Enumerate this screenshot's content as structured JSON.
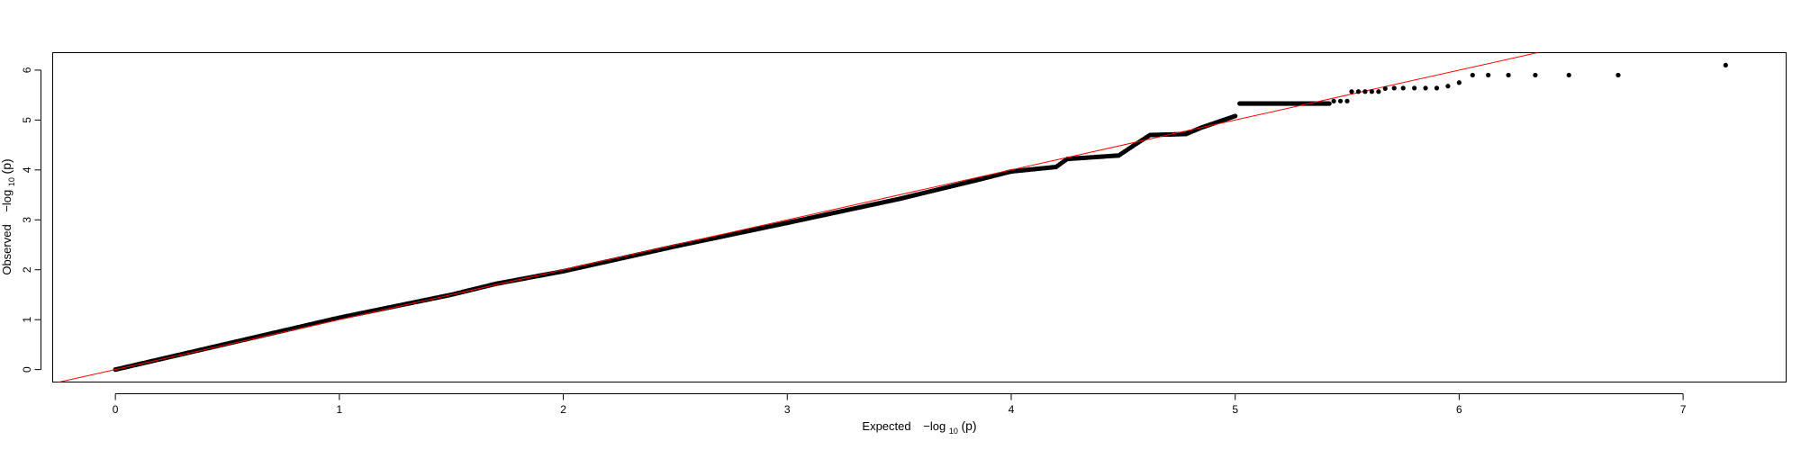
{
  "chart_data": {
    "type": "scatter",
    "title": "",
    "xlabel": "Expected",
    "ylabel": "Observed",
    "axis_expr": {
      "prefix": "−log",
      "subscript": "10",
      "argument": "(p)"
    },
    "xlim": [
      -0.28,
      7.46
    ],
    "ylim": [
      -0.25,
      6.35
    ],
    "xticks": [
      0,
      1,
      2,
      3,
      4,
      5,
      6,
      7
    ],
    "yticks": [
      0,
      1,
      2,
      3,
      4,
      5,
      6
    ],
    "reference_line": {
      "slope": 1,
      "intercept": 0,
      "color": "#ff0000"
    },
    "point_color": "#000000",
    "grid": false,
    "legend": "none",
    "path": [
      [
        0.0,
        0.0
      ],
      [
        0.5,
        0.52
      ],
      [
        1.0,
        1.04
      ],
      [
        1.5,
        1.5
      ],
      [
        1.7,
        1.72
      ],
      [
        2.0,
        1.97
      ],
      [
        2.5,
        2.47
      ],
      [
        3.0,
        2.94
      ],
      [
        3.5,
        3.42
      ],
      [
        3.85,
        3.8
      ],
      [
        4.0,
        3.97
      ],
      [
        4.2,
        4.06
      ],
      [
        4.25,
        4.22
      ],
      [
        4.48,
        4.29
      ],
      [
        4.55,
        4.5
      ],
      [
        4.62,
        4.7
      ],
      [
        4.78,
        4.72
      ],
      [
        4.85,
        4.85
      ],
      [
        5.0,
        5.08
      ]
    ],
    "flat_run": {
      "x": [
        5.02,
        5.42
      ],
      "y": 5.33
    },
    "tail_points": [
      [
        5.44,
        5.38
      ],
      [
        5.47,
        5.38
      ],
      [
        5.5,
        5.38
      ],
      [
        5.52,
        5.57
      ],
      [
        5.55,
        5.57
      ],
      [
        5.58,
        5.57
      ],
      [
        5.61,
        5.57
      ],
      [
        5.64,
        5.57
      ],
      [
        5.67,
        5.63
      ],
      [
        5.71,
        5.64
      ],
      [
        5.75,
        5.64
      ],
      [
        5.8,
        5.64
      ],
      [
        5.85,
        5.64
      ],
      [
        5.9,
        5.64
      ],
      [
        5.95,
        5.68
      ],
      [
        6.0,
        5.75
      ],
      [
        6.06,
        5.9
      ],
      [
        6.13,
        5.9
      ],
      [
        6.22,
        5.9
      ],
      [
        6.34,
        5.9
      ],
      [
        6.49,
        5.9
      ],
      [
        6.71,
        5.9
      ],
      [
        7.19,
        6.1
      ]
    ]
  }
}
